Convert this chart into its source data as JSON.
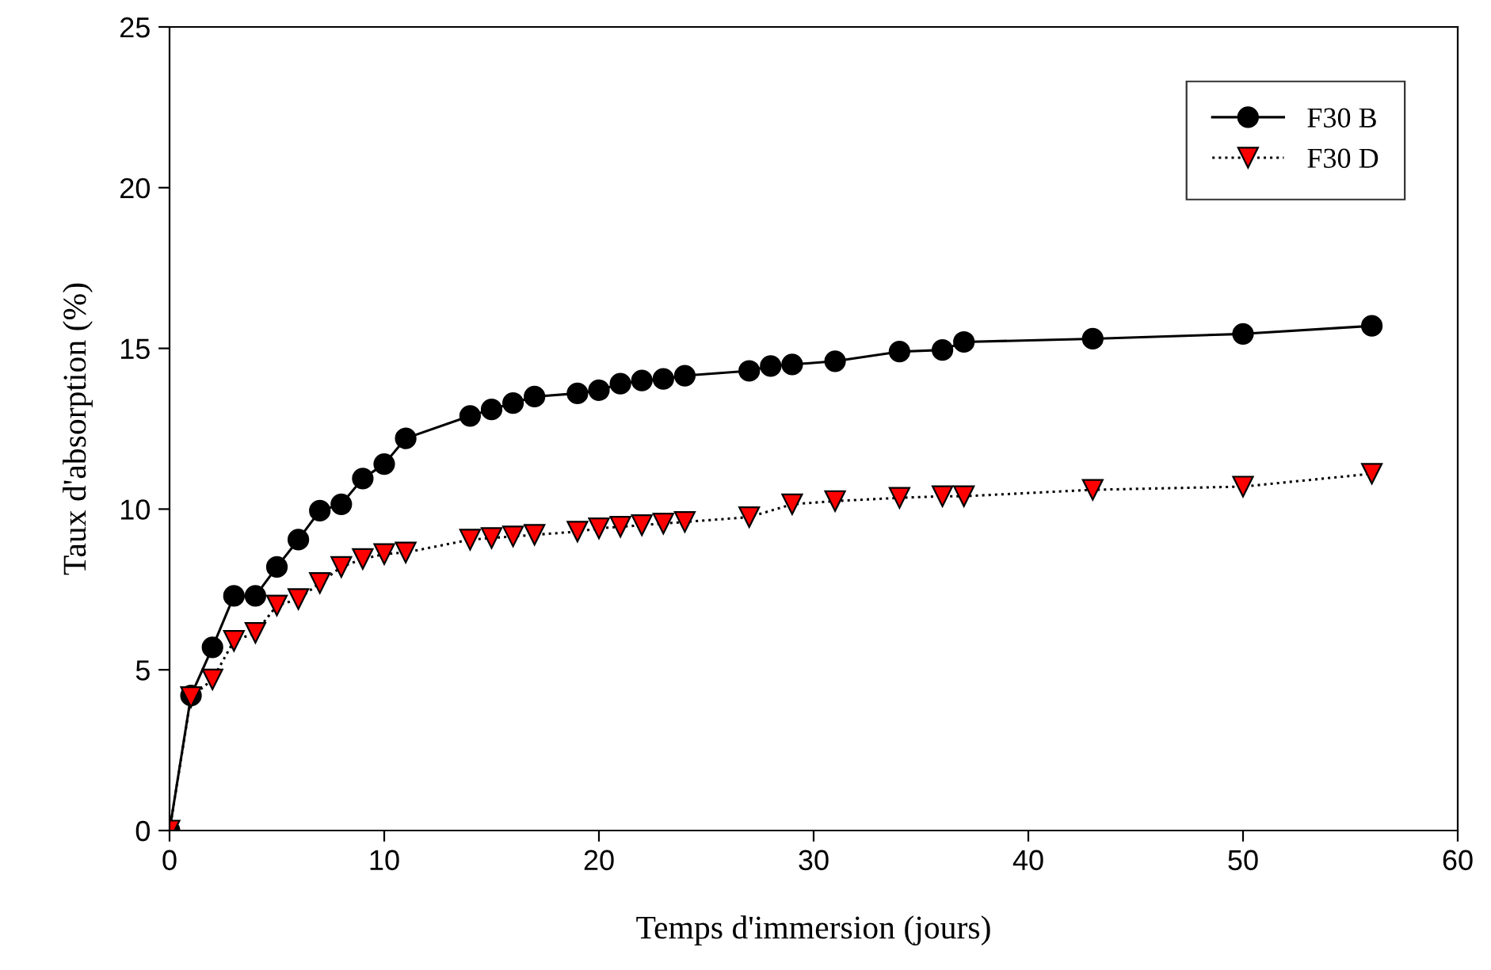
{
  "chart_data": {
    "type": "line",
    "xlabel": "Temps d'immersion (jours)",
    "ylabel": "Taux d'absorption (%)",
    "xlim": [
      0,
      60
    ],
    "xticks": [
      0,
      10,
      20,
      30,
      40,
      50,
      60
    ],
    "ylim": [
      0,
      25
    ],
    "yticks": [
      0,
      5,
      10,
      15,
      20,
      25
    ],
    "legend": "top right",
    "series": [
      {
        "name": "F30 B",
        "color": "#000000",
        "marker": "circle",
        "line_style": "solid",
        "x": [
          0,
          1,
          2,
          3,
          4,
          5,
          6,
          7,
          8,
          9,
          10,
          11,
          14,
          15,
          16,
          17,
          19,
          20,
          21,
          22,
          23,
          24,
          27,
          28,
          29,
          31,
          34,
          36,
          37,
          43,
          50,
          56
        ],
        "values": [
          0,
          4.2,
          5.7,
          7.3,
          7.3,
          8.2,
          9.05,
          9.95,
          10.15,
          10.95,
          11.4,
          12.2,
          12.9,
          13.1,
          13.3,
          13.5,
          13.6,
          13.7,
          13.9,
          14.0,
          14.05,
          14.15,
          14.3,
          14.45,
          14.5,
          14.6,
          14.9,
          14.95,
          15.2,
          15.3,
          15.45,
          15.7
        ]
      },
      {
        "name": "F30 D",
        "color": "#ff0000",
        "marker": "triangle",
        "line_style": "dotted",
        "x": [
          0,
          1,
          2,
          3,
          4,
          5,
          6,
          7,
          8,
          9,
          10,
          11,
          14,
          15,
          16,
          17,
          19,
          20,
          21,
          22,
          23,
          24,
          27,
          29,
          31,
          34,
          36,
          37,
          43,
          50,
          56
        ],
        "values": [
          0,
          4.15,
          4.7,
          5.9,
          6.15,
          7.0,
          7.2,
          7.7,
          8.2,
          8.45,
          8.6,
          8.65,
          9.05,
          9.1,
          9.15,
          9.2,
          9.3,
          9.4,
          9.45,
          9.5,
          9.55,
          9.6,
          9.75,
          10.15,
          10.25,
          10.35,
          10.4,
          10.4,
          10.6,
          10.7,
          11.1
        ]
      }
    ]
  }
}
